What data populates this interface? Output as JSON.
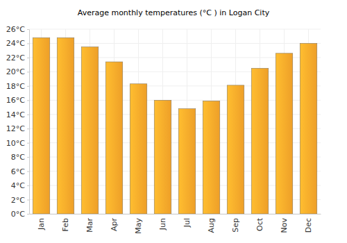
{
  "chart_data": {
    "type": "bar",
    "title": "Average monthly temperatures (°C ) in Logan City",
    "categories": [
      "Jan",
      "Feb",
      "Mar",
      "Apr",
      "May",
      "Jun",
      "Jul",
      "Aug",
      "Sep",
      "Oct",
      "Nov",
      "Dec"
    ],
    "values": [
      24.8,
      24.8,
      23.5,
      21.4,
      18.3,
      16.0,
      14.8,
      15.9,
      18.1,
      20.5,
      22.6,
      24.0
    ],
    "color": "#fba82a",
    "ylim": [
      0,
      26
    ],
    "yticks": [
      {
        "value": 0,
        "label": "0°C"
      },
      {
        "value": 2,
        "label": "2°C"
      },
      {
        "value": 4,
        "label": "4°C"
      },
      {
        "value": 6,
        "label": "6°C"
      },
      {
        "value": 8,
        "label": "8°C"
      },
      {
        "value": 10,
        "label": "10°C"
      },
      {
        "value": 12,
        "label": "12°C"
      },
      {
        "value": 14,
        "label": "14°C"
      },
      {
        "value": 16,
        "label": "16°C"
      },
      {
        "value": 18,
        "label": "18°C"
      },
      {
        "value": 20,
        "label": "20°C"
      },
      {
        "value": 22,
        "label": "22°C"
      },
      {
        "value": 24,
        "label": "24°C"
      },
      {
        "value": 26,
        "label": "26°C"
      }
    ],
    "grid": true
  }
}
